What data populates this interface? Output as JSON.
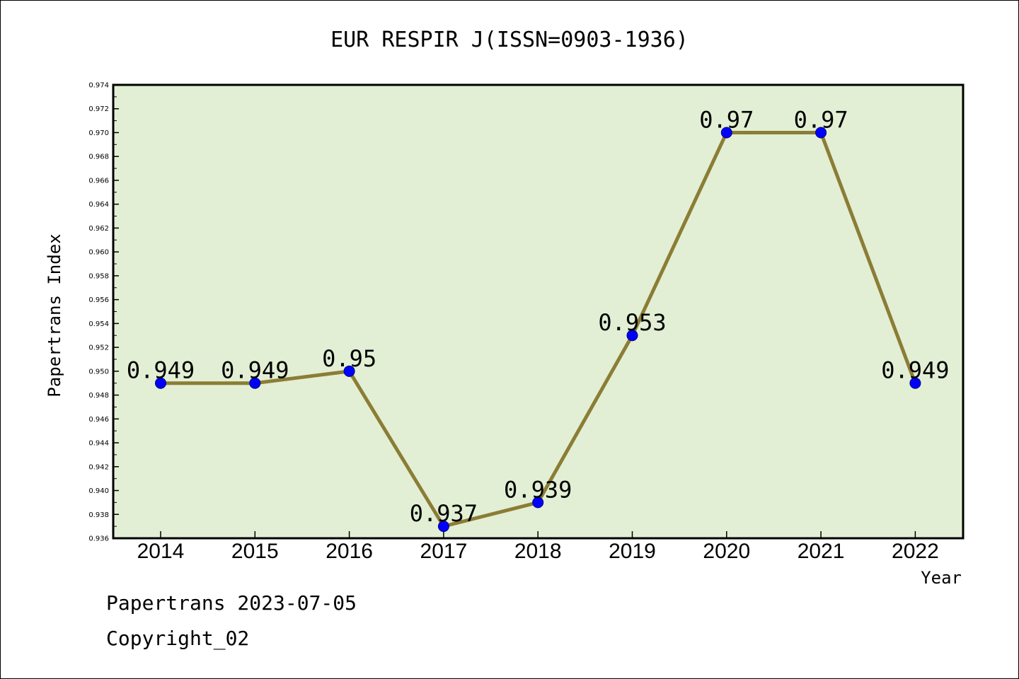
{
  "chart_data": {
    "type": "line",
    "title": "EUR RESPIR J(ISSN=0903-1936)",
    "xlabel": "Year",
    "ylabel": "Papertrans Index",
    "categories": [
      "2014",
      "2015",
      "2016",
      "2017",
      "2018",
      "2019",
      "2020",
      "2021",
      "2022"
    ],
    "series": [
      {
        "values": [
          0.949,
          0.949,
          0.95,
          0.937,
          0.939,
          0.953,
          0.97,
          0.97,
          0.949
        ]
      }
    ],
    "data_labels": [
      "0.949",
      "0.949",
      "0.95",
      "0.937",
      "0.939",
      "0.953",
      "0.97",
      "0.97",
      "0.949"
    ],
    "ylim": [
      0.936,
      0.974
    ],
    "yticks": [
      "0.936",
      "0.938",
      "0.940",
      "0.942",
      "0.944",
      "0.946",
      "0.948",
      "0.950",
      "0.952",
      "0.954",
      "0.956",
      "0.958",
      "0.960",
      "0.962",
      "0.964",
      "0.966",
      "0.968",
      "0.970",
      "0.972",
      "0.974"
    ],
    "grid": false,
    "plot_background": "#e2efd5",
    "line_color": "#8b7d35",
    "marker_color": "#0000ff"
  },
  "footer": {
    "line1": "Papertrans 2023-07-05",
    "line2": "Copyright_02"
  }
}
